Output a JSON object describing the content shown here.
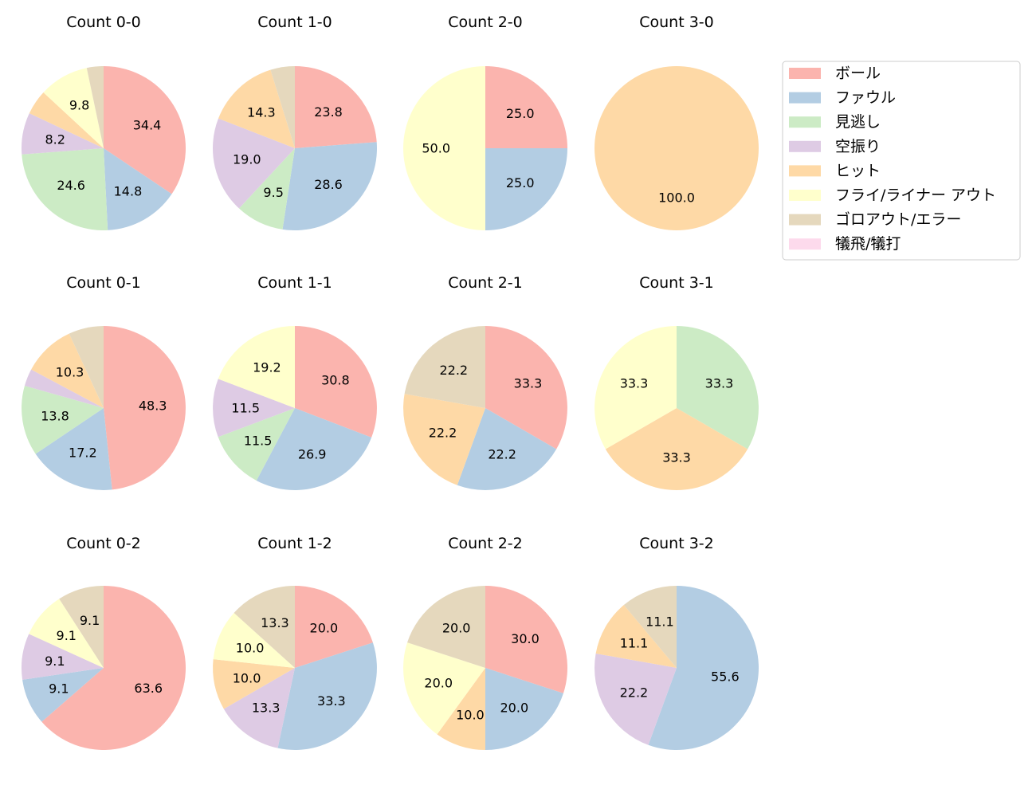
{
  "legend": {
    "categories": [
      {
        "label": "ボール",
        "color": "#fbb4ae"
      },
      {
        "label": "ファウル",
        "color": "#b3cde3"
      },
      {
        "label": "見逃し",
        "color": "#ccebc5"
      },
      {
        "label": "空振り",
        "color": "#decbe4"
      },
      {
        "label": "ヒット",
        "color": "#fed9a6"
      },
      {
        "label": "フライ/ライナー アウト",
        "color": "#ffffcc"
      },
      {
        "label": "ゴロアウト/エラー",
        "color": "#e5d8bd"
      },
      {
        "label": "犠飛/犠打",
        "color": "#fddaec"
      }
    ]
  },
  "chart_data": [
    {
      "type": "pie",
      "title": "Count 0-0",
      "values": [
        34.4,
        14.8,
        24.6,
        8.2,
        4.9,
        9.8,
        3.3,
        0
      ],
      "labels": [
        "34.4",
        "14.8",
        "24.6",
        "8.2",
        "",
        "9.8",
        "",
        ""
      ]
    },
    {
      "type": "pie",
      "title": "Count 1-0",
      "values": [
        23.8,
        28.6,
        9.5,
        19.0,
        14.3,
        0,
        4.8,
        0
      ],
      "labels": [
        "23.8",
        "28.6",
        "9.5",
        "19.0",
        "14.3",
        "",
        "",
        ""
      ]
    },
    {
      "type": "pie",
      "title": "Count 2-0",
      "values": [
        25.0,
        25.0,
        0,
        0,
        0,
        50.0,
        0,
        0
      ],
      "labels": [
        "25.0",
        "25.0",
        "",
        "",
        "",
        "50.0",
        "",
        ""
      ]
    },
    {
      "type": "pie",
      "title": "Count 3-0",
      "values": [
        0,
        0,
        0,
        0,
        100.0,
        0,
        0,
        0
      ],
      "labels": [
        "",
        "",
        "",
        "",
        "100.0",
        "",
        "",
        ""
      ]
    },
    {
      "type": "pie",
      "title": "Count 0-1",
      "values": [
        48.3,
        17.2,
        13.8,
        3.4,
        10.3,
        0,
        6.9,
        0
      ],
      "labels": [
        "48.3",
        "17.2",
        "13.8",
        "",
        "10.3",
        "",
        "",
        ""
      ]
    },
    {
      "type": "pie",
      "title": "Count 1-1",
      "values": [
        30.8,
        26.9,
        11.5,
        11.5,
        0,
        19.2,
        0,
        0
      ],
      "labels": [
        "30.8",
        "26.9",
        "11.5",
        "11.5",
        "",
        "19.2",
        "",
        ""
      ]
    },
    {
      "type": "pie",
      "title": "Count 2-1",
      "values": [
        33.3,
        22.2,
        0,
        0,
        22.2,
        0,
        22.2,
        0
      ],
      "labels": [
        "33.3",
        "22.2",
        "",
        "",
        "22.2",
        "",
        "22.2",
        ""
      ]
    },
    {
      "type": "pie",
      "title": "Count 3-1",
      "values": [
        0,
        0,
        33.3,
        0,
        33.3,
        33.3,
        0,
        0
      ],
      "labels": [
        "",
        "",
        "33.3",
        "",
        "33.3",
        "33.3",
        "",
        ""
      ]
    },
    {
      "type": "pie",
      "title": "Count 0-2",
      "values": [
        63.6,
        9.1,
        0,
        9.1,
        0,
        9.1,
        9.1,
        0
      ],
      "labels": [
        "63.6",
        "9.1",
        "",
        "9.1",
        "",
        "9.1",
        "9.1",
        ""
      ]
    },
    {
      "type": "pie",
      "title": "Count 1-2",
      "values": [
        20.0,
        33.3,
        0,
        13.3,
        10.0,
        10.0,
        13.3,
        0
      ],
      "labels": [
        "20.0",
        "33.3",
        "",
        "13.3",
        "10.0",
        "10.0",
        "13.3",
        ""
      ]
    },
    {
      "type": "pie",
      "title": "Count 2-2",
      "values": [
        30.0,
        20.0,
        0,
        0,
        10.0,
        20.0,
        20.0,
        0
      ],
      "labels": [
        "30.0",
        "20.0",
        "",
        "",
        "10.0",
        "20.0",
        "20.0",
        ""
      ]
    },
    {
      "type": "pie",
      "title": "Count 3-2",
      "values": [
        0,
        55.6,
        0,
        22.2,
        11.1,
        0,
        11.1,
        0
      ],
      "labels": [
        "",
        "55.6",
        "",
        "22.2",
        "11.1",
        "",
        "11.1",
        ""
      ]
    }
  ]
}
